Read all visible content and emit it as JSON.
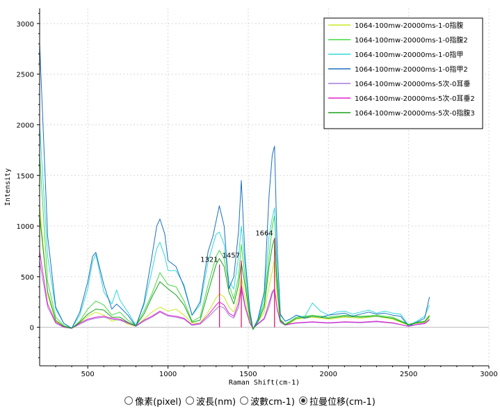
{
  "chart_data": {
    "type": "line",
    "xlabel": "Raman Shift(cm-1)",
    "ylabel": "Intensity",
    "xlim": [
      200,
      3000
    ],
    "ylim": [
      -380,
      3150
    ],
    "xticks": [
      500,
      1000,
      1500,
      2000,
      2500,
      3000
    ],
    "yticks": [
      0,
      500,
      1000,
      1500,
      2000,
      2500,
      3000
    ],
    "grid": true,
    "legend_position": "top-right",
    "series": [
      {
        "name": "1064-100mw-20000ms-1-0指腹",
        "color": "#c8e820",
        "x": [
          200,
          250,
          300,
          350,
          400,
          450,
          500,
          550,
          600,
          650,
          700,
          750,
          800,
          850,
          900,
          950,
          1000,
          1050,
          1100,
          1150,
          1200,
          1250,
          1300,
          1320,
          1350,
          1380,
          1410,
          1440,
          1457,
          1480,
          1510,
          1530,
          1560,
          1600,
          1630,
          1650,
          1664,
          1680,
          1700,
          1730,
          1760,
          1800,
          1900,
          2000,
          2100,
          2200,
          2300,
          2400,
          2500,
          2550,
          2600,
          2630
        ],
        "y": [
          1200,
          320,
          60,
          10,
          -10,
          40,
          110,
          150,
          120,
          60,
          80,
          30,
          10,
          80,
          150,
          200,
          160,
          180,
          120,
          40,
          40,
          150,
          290,
          330,
          300,
          200,
          150,
          300,
          500,
          300,
          60,
          -10,
          50,
          150,
          400,
          550,
          680,
          300,
          60,
          20,
          40,
          80,
          100,
          80,
          100,
          90,
          110,
          80,
          20,
          40,
          50,
          100
        ]
      },
      {
        "name": "1064-100mw-20000ms-1-0指腹2",
        "color": "#40d840",
        "x": [
          200,
          250,
          300,
          350,
          400,
          450,
          500,
          550,
          600,
          650,
          700,
          750,
          800,
          850,
          900,
          950,
          1000,
          1050,
          1100,
          1150,
          1200,
          1250,
          1300,
          1320,
          1350,
          1380,
          1410,
          1440,
          1457,
          1480,
          1510,
          1530,
          1560,
          1600,
          1630,
          1650,
          1664,
          1680,
          1700,
          1730,
          1760,
          1800,
          1900,
          2000,
          2100,
          2200,
          2300,
          2400,
          2500,
          2550,
          2600,
          2630
        ],
        "y": [
          1700,
          450,
          100,
          20,
          -10,
          60,
          180,
          260,
          220,
          120,
          150,
          70,
          20,
          160,
          330,
          540,
          420,
          400,
          260,
          60,
          100,
          420,
          700,
          760,
          680,
          420,
          280,
          500,
          820,
          500,
          120,
          -20,
          60,
          240,
          700,
          1000,
          1100,
          500,
          80,
          30,
          60,
          100,
          120,
          100,
          120,
          110,
          120,
          100,
          30,
          50,
          60,
          120
        ]
      },
      {
        "name": "1064-100mw-20000ms-1-0指甲",
        "color": "#30d8d8",
        "x": [
          200,
          250,
          300,
          350,
          400,
          450,
          500,
          530,
          550,
          580,
          600,
          650,
          680,
          700,
          750,
          800,
          850,
          900,
          930,
          950,
          980,
          1000,
          1050,
          1100,
          1150,
          1200,
          1250,
          1300,
          1320,
          1350,
          1380,
          1410,
          1440,
          1457,
          1480,
          1510,
          1530,
          1560,
          1600,
          1630,
          1650,
          1664,
          1680,
          1700,
          1730,
          1760,
          1800,
          1850,
          1900,
          1950,
          2000,
          2050,
          2100,
          2150,
          2200,
          2250,
          2300,
          2350,
          2400,
          2450,
          2500,
          2550,
          2600,
          2630
        ],
        "y": [
          2000,
          700,
          180,
          40,
          -10,
          120,
          380,
          650,
          720,
          500,
          350,
          230,
          370,
          270,
          150,
          20,
          220,
          560,
          780,
          840,
          700,
          560,
          560,
          420,
          120,
          220,
          650,
          920,
          940,
          820,
          450,
          380,
          700,
          1000,
          620,
          160,
          -20,
          60,
          300,
          900,
          1080,
          1180,
          560,
          120,
          60,
          80,
          120,
          100,
          240,
          160,
          120,
          150,
          160,
          130,
          150,
          170,
          140,
          160,
          140,
          130,
          20,
          60,
          110,
          220
        ]
      },
      {
        "name": "1064-100mw-20000ms-1-0指甲2",
        "color": "#1a6fc0",
        "x": [
          200,
          250,
          300,
          350,
          400,
          450,
          500,
          530,
          550,
          580,
          600,
          650,
          680,
          700,
          750,
          800,
          850,
          900,
          930,
          950,
          980,
          1000,
          1050,
          1100,
          1150,
          1200,
          1250,
          1280,
          1320,
          1350,
          1380,
          1410,
          1440,
          1457,
          1480,
          1510,
          1530,
          1560,
          1600,
          1630,
          1650,
          1664,
          1680,
          1700,
          1730,
          1760,
          1800,
          1850,
          1900,
          1950,
          2000,
          2050,
          2100,
          2150,
          2200,
          2250,
          2300,
          2350,
          2400,
          2450,
          2500,
          2550,
          2600,
          2630
        ],
        "y": [
          2800,
          900,
          200,
          40,
          -10,
          150,
          450,
          700,
          740,
          550,
          420,
          180,
          230,
          200,
          120,
          10,
          240,
          700,
          1000,
          1070,
          920,
          660,
          600,
          400,
          120,
          250,
          750,
          900,
          1200,
          1000,
          380,
          500,
          950,
          1450,
          700,
          170,
          -20,
          80,
          350,
          1300,
          1700,
          1790,
          800,
          130,
          60,
          80,
          120,
          90,
          110,
          100,
          120,
          130,
          140,
          110,
          130,
          150,
          130,
          140,
          120,
          110,
          10,
          50,
          90,
          300
        ]
      },
      {
        "name": "1064-100mw-20000ms-5次-0耳垂",
        "color": "#a878d8",
        "x": [
          200,
          250,
          300,
          350,
          400,
          450,
          500,
          550,
          600,
          650,
          700,
          750,
          800,
          850,
          900,
          950,
          1000,
          1050,
          1100,
          1150,
          1200,
          1250,
          1300,
          1320,
          1350,
          1380,
          1410,
          1440,
          1457,
          1480,
          1510,
          1530,
          1560,
          1600,
          1630,
          1650,
          1664,
          1680,
          1700,
          1730,
          1760,
          1800,
          1900,
          2000,
          2100,
          2200,
          2300,
          2400,
          2500,
          2550,
          2600,
          2630
        ],
        "y": [
          650,
          200,
          40,
          0,
          -10,
          30,
          70,
          90,
          100,
          80,
          70,
          40,
          10,
          60,
          100,
          150,
          110,
          100,
          80,
          20,
          30,
          100,
          180,
          210,
          190,
          120,
          90,
          200,
          380,
          200,
          40,
          -10,
          30,
          80,
          200,
          330,
          370,
          180,
          50,
          20,
          30,
          40,
          50,
          40,
          50,
          45,
          55,
          40,
          10,
          25,
          35,
          70
        ]
      },
      {
        "name": "1064-100mw-20000ms-5次-0耳垂2",
        "color": "#e020d0",
        "x": [
          200,
          250,
          300,
          350,
          400,
          450,
          500,
          550,
          600,
          650,
          700,
          750,
          800,
          850,
          900,
          950,
          1000,
          1050,
          1100,
          1150,
          1200,
          1250,
          1300,
          1320,
          1350,
          1380,
          1410,
          1440,
          1457,
          1480,
          1510,
          1530,
          1560,
          1600,
          1630,
          1650,
          1664,
          1680,
          1700,
          1730,
          1760,
          1800,
          1900,
          2000,
          2100,
          2200,
          2300,
          2400,
          2500,
          2550,
          2600,
          2630
        ],
        "y": [
          750,
          230,
          50,
          5,
          -10,
          40,
          80,
          100,
          110,
          90,
          80,
          45,
          15,
          70,
          110,
          160,
          120,
          110,
          90,
          25,
          40,
          120,
          220,
          250,
          220,
          140,
          110,
          240,
          420,
          220,
          45,
          -10,
          35,
          90,
          240,
          350,
          380,
          190,
          60,
          25,
          35,
          45,
          55,
          45,
          55,
          50,
          60,
          45,
          10,
          30,
          40,
          80
        ]
      },
      {
        "name": "1064-100mw-20000ms-5次-0指腹3",
        "color": "#18a018",
        "x": [
          200,
          250,
          300,
          350,
          400,
          450,
          500,
          550,
          600,
          650,
          700,
          750,
          800,
          850,
          900,
          950,
          1000,
          1050,
          1100,
          1150,
          1200,
          1250,
          1300,
          1320,
          1350,
          1380,
          1410,
          1440,
          1457,
          1480,
          1510,
          1530,
          1560,
          1600,
          1630,
          1650,
          1664,
          1680,
          1700,
          1730,
          1760,
          1800,
          1900,
          2000,
          2100,
          2200,
          2300,
          2400,
          2500,
          2550,
          2600,
          2630
        ],
        "y": [
          1100,
          350,
          70,
          10,
          -10,
          50,
          130,
          180,
          170,
          100,
          100,
          50,
          15,
          130,
          300,
          450,
          380,
          320,
          220,
          50,
          70,
          350,
          620,
          680,
          600,
          350,
          230,
          420,
          640,
          420,
          100,
          -20,
          50,
          200,
          600,
          800,
          880,
          400,
          70,
          25,
          50,
          90,
          110,
          90,
          110,
          100,
          110,
          90,
          25,
          45,
          55,
          110
        ]
      }
    ],
    "peak_markers": [
      {
        "label": "1321",
        "x": 1321,
        "y": 620,
        "color": "#e0186c"
      },
      {
        "label": "1457",
        "x": 1457,
        "y": 660,
        "color": "#e0186c"
      },
      {
        "label": "1664",
        "x": 1664,
        "y": 880,
        "color": "#e0186c"
      }
    ]
  },
  "controls": {
    "radio_options": [
      {
        "label": "像素(pixel)",
        "checked": false
      },
      {
        "label": "波長(nm)",
        "checked": false
      },
      {
        "label": "波數cm-1)",
        "checked": false
      },
      {
        "label": "拉曼位移(cm-1)",
        "checked": true
      }
    ]
  }
}
